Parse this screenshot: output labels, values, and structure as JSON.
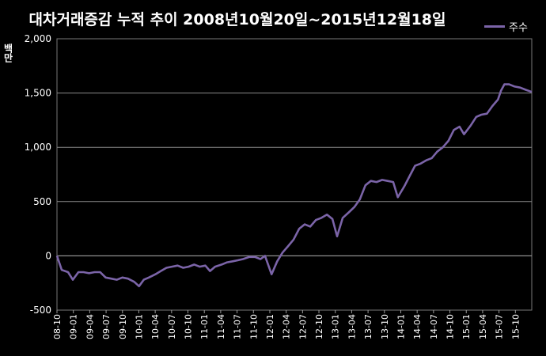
{
  "chart_data": {
    "type": "line",
    "title": "대차거래증감 누적 추이 2008년10월20일~2015년12월18일",
    "ylabel": "백만",
    "xlabel": "",
    "ylim": [
      -500,
      2000
    ],
    "yticks": [
      "2,000",
      "1,500",
      "1,000",
      "500",
      "0",
      "-500"
    ],
    "ytick_values": [
      2000,
      1500,
      1000,
      500,
      0,
      -500
    ],
    "grid": true,
    "legend_position": "top-right",
    "categories": [
      "08-10",
      "09-01",
      "09-04",
      "09-07",
      "09-10",
      "10-01",
      "10-04",
      "10-07",
      "10-10",
      "11-01",
      "11-04",
      "11-07",
      "11-10",
      "12-01",
      "12-04",
      "12-07",
      "12-10",
      "13-01",
      "13-04",
      "13-07",
      "13-10",
      "14-01",
      "14-04",
      "14-07",
      "14-10",
      "15-01",
      "15-04",
      "15-07",
      "15-10"
    ],
    "series": [
      {
        "name": "주수",
        "color": "#7b64a8",
        "x": [
          "2008-10-20",
          "2008-11-15",
          "2008-12-20",
          "2009-01-15",
          "2009-02-15",
          "2009-03-15",
          "2009-04-15",
          "2009-05-15",
          "2009-06-15",
          "2009-07-15",
          "2009-08-15",
          "2009-09-15",
          "2009-10-15",
          "2009-11-15",
          "2009-12-20",
          "2010-01-15",
          "2010-02-10",
          "2010-03-10",
          "2010-04-15",
          "2010-05-15",
          "2010-06-15",
          "2010-07-15",
          "2010-08-15",
          "2010-09-15",
          "2010-10-15",
          "2010-11-15",
          "2010-12-15",
          "2011-01-15",
          "2011-02-10",
          "2011-03-10",
          "2011-04-15",
          "2011-05-15",
          "2011-06-15",
          "2011-07-15",
          "2011-08-10",
          "2011-09-15",
          "2011-10-15",
          "2011-11-15",
          "2011-12-10",
          "2012-01-15",
          "2012-02-15",
          "2012-03-15",
          "2012-04-15",
          "2012-05-15",
          "2012-06-15",
          "2012-07-15",
          "2012-08-15",
          "2012-09-15",
          "2012-10-15",
          "2012-11-15",
          "2012-12-15",
          "2013-01-10",
          "2013-02-10",
          "2013-03-15",
          "2013-04-15",
          "2013-05-15",
          "2013-06-15",
          "2013-07-15",
          "2013-08-15",
          "2013-09-15",
          "2013-10-15",
          "2013-11-15",
          "2013-12-10",
          "2014-01-15",
          "2014-02-15",
          "2014-03-15",
          "2014-04-15",
          "2014-05-15",
          "2014-06-15",
          "2014-07-15",
          "2014-08-15",
          "2014-09-15",
          "2014-10-15",
          "2014-11-15",
          "2014-12-10",
          "2015-01-15",
          "2015-02-15",
          "2015-03-15",
          "2015-04-15",
          "2015-05-15",
          "2015-06-15",
          "2015-07-01",
          "2015-07-20",
          "2015-08-15",
          "2015-09-15",
          "2015-10-15",
          "2015-11-15",
          "2015-12-18"
        ],
        "values": [
          0,
          -130,
          -150,
          -220,
          -150,
          -150,
          -160,
          -150,
          -150,
          -200,
          -210,
          -220,
          -200,
          -210,
          -240,
          -280,
          -220,
          -200,
          -170,
          -140,
          -110,
          -100,
          -90,
          -110,
          -100,
          -80,
          -100,
          -90,
          -140,
          -100,
          -80,
          -60,
          -50,
          -40,
          -30,
          -10,
          -10,
          -30,
          0,
          -170,
          -50,
          30,
          90,
          150,
          250,
          290,
          270,
          330,
          350,
          380,
          340,
          180,
          350,
          400,
          450,
          520,
          650,
          690,
          680,
          700,
          690,
          680,
          540,
          640,
          740,
          830,
          850,
          880,
          900,
          960,
          1000,
          1060,
          1160,
          1190,
          1120,
          1200,
          1280,
          1300,
          1310,
          1380,
          1440,
          1520,
          1580,
          1580,
          1560,
          1550,
          1530,
          1510
        ]
      }
    ]
  }
}
